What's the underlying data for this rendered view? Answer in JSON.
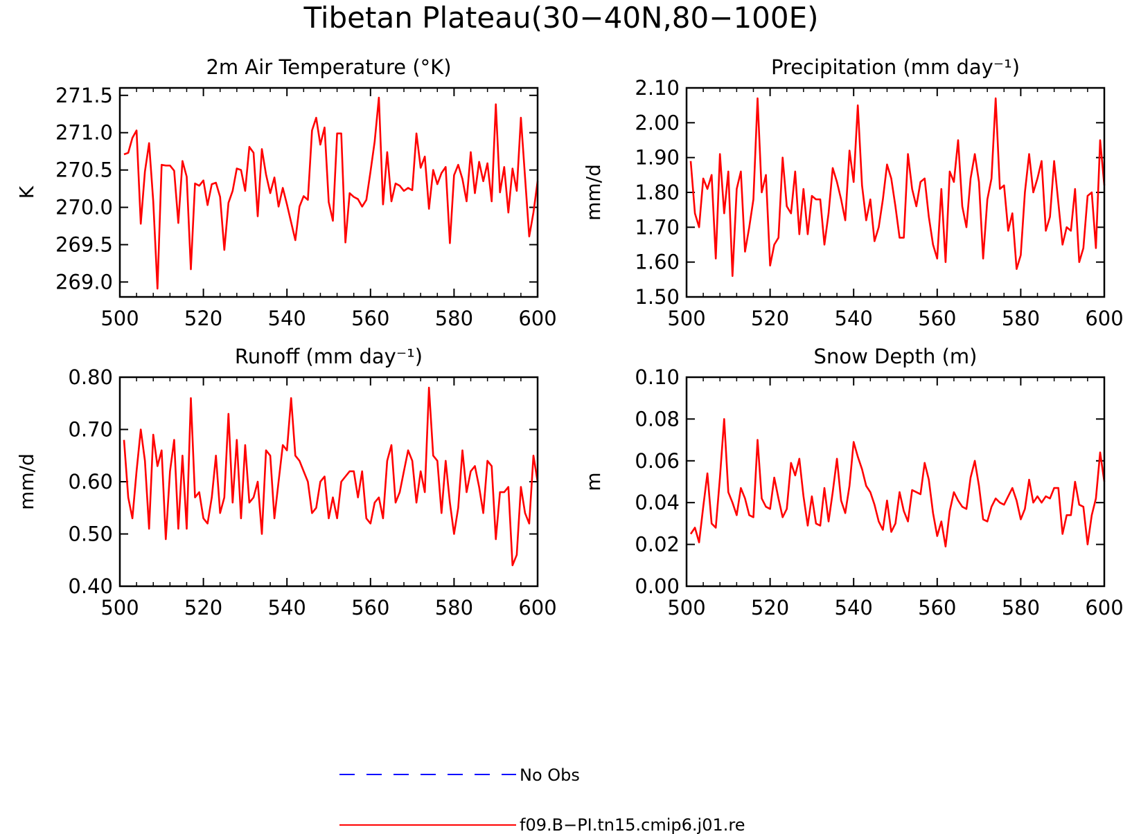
{
  "title": "Tibetan Plateau(30−40N,80−100E)",
  "colors": {
    "model": "#ff0000",
    "obs": "#0000ff",
    "axis": "#000000"
  },
  "legend": [
    {
      "label": "No Obs",
      "color": "#0000ff",
      "style": "dashed"
    },
    {
      "label": "f09.B−PI.tn15.cmip6.j01.re",
      "color": "#ff0000",
      "style": "solid"
    }
  ],
  "chart_data": [
    {
      "type": "line",
      "title": "2m Air Temperature (°K)",
      "xlabel": "",
      "ylabel": "K",
      "xlim": [
        500,
        600
      ],
      "ylim": [
        268.8,
        271.6
      ],
      "xticks": [
        "500",
        "520",
        "540",
        "560",
        "580",
        "600"
      ],
      "yticks": [
        "269.0",
        "269.5",
        "270.0",
        "270.5",
        "271.0",
        "271.5"
      ],
      "x_start": 501,
      "series": [
        {
          "name": "f09.B−PI.tn15.cmip6.j01.re",
          "values": [
            270.71,
            270.73,
            270.93,
            271.03,
            269.78,
            270.48,
            270.86,
            270.08,
            268.91,
            270.57,
            270.56,
            270.56,
            270.49,
            269.79,
            270.62,
            270.41,
            269.17,
            270.32,
            270.29,
            270.36,
            270.03,
            270.31,
            270.33,
            270.14,
            269.43,
            270.06,
            270.22,
            270.52,
            270.5,
            270.22,
            270.81,
            270.73,
            269.88,
            270.78,
            270.44,
            270.19,
            270.4,
            270.01,
            270.26,
            270.04,
            269.8,
            269.56,
            270.01,
            270.15,
            270.1,
            271.03,
            271.2,
            270.84,
            271.07,
            270.07,
            269.82,
            270.99,
            270.99,
            269.53,
            270.19,
            270.14,
            270.11,
            270.01,
            270.1,
            270.48,
            270.88,
            271.47,
            270.04,
            270.74,
            270.08,
            270.32,
            270.29,
            270.22,
            270.26,
            270.23,
            270.99,
            270.53,
            270.68,
            269.98,
            270.5,
            270.31,
            270.46,
            270.54,
            269.52,
            270.43,
            270.57,
            270.38,
            270.08,
            270.74,
            270.19,
            270.61,
            270.35,
            270.59,
            270.08,
            271.38,
            270.2,
            270.54,
            269.93,
            270.52,
            270.22,
            271.2,
            270.4,
            269.61,
            269.93,
            270.35
          ]
        }
      ]
    },
    {
      "type": "line",
      "title": "Precipitation (mm day⁻¹)",
      "xlabel": "",
      "ylabel": "mm/d",
      "xlim": [
        500,
        600
      ],
      "ylim": [
        1.5,
        2.1
      ],
      "xticks": [
        "500",
        "520",
        "540",
        "560",
        "580",
        "600"
      ],
      "yticks": [
        "1.50",
        "1.60",
        "1.70",
        "1.80",
        "1.90",
        "2.00",
        "2.10"
      ],
      "x_start": 501,
      "series": [
        {
          "name": "f09.B−PI.tn15.cmip6.j01.re",
          "values": [
            1.89,
            1.74,
            1.7,
            1.84,
            1.81,
            1.85,
            1.61,
            1.91,
            1.74,
            1.86,
            1.56,
            1.81,
            1.86,
            1.63,
            1.7,
            1.78,
            2.07,
            1.8,
            1.85,
            1.59,
            1.65,
            1.67,
            1.9,
            1.76,
            1.74,
            1.86,
            1.68,
            1.81,
            1.68,
            1.79,
            1.78,
            1.78,
            1.65,
            1.74,
            1.87,
            1.83,
            1.78,
            1.72,
            1.92,
            1.83,
            2.05,
            1.82,
            1.72,
            1.78,
            1.66,
            1.7,
            1.78,
            1.88,
            1.84,
            1.76,
            1.67,
            1.67,
            1.91,
            1.81,
            1.76,
            1.83,
            1.84,
            1.73,
            1.65,
            1.61,
            1.81,
            1.6,
            1.86,
            1.83,
            1.95,
            1.76,
            1.7,
            1.84,
            1.91,
            1.83,
            1.61,
            1.78,
            1.84,
            2.07,
            1.81,
            1.82,
            1.69,
            1.74,
            1.58,
            1.62,
            1.8,
            1.91,
            1.8,
            1.84,
            1.89,
            1.69,
            1.73,
            1.89,
            1.77,
            1.65,
            1.7,
            1.69,
            1.81,
            1.6,
            1.64,
            1.79,
            1.8,
            1.64,
            1.95,
            1.82
          ]
        }
      ]
    },
    {
      "type": "line",
      "title": "Runoff (mm day⁻¹)",
      "xlabel": "",
      "ylabel": "mm/d",
      "xlim": [
        500,
        600
      ],
      "ylim": [
        0.4,
        0.8
      ],
      "xticks": [
        "500",
        "520",
        "540",
        "560",
        "580",
        "600"
      ],
      "yticks": [
        "0.40",
        "0.50",
        "0.60",
        "0.70",
        "0.80"
      ],
      "x_start": 501,
      "series": [
        {
          "name": "f09.B−PI.tn15.cmip6.j01.re",
          "values": [
            0.68,
            0.57,
            0.53,
            0.62,
            0.7,
            0.64,
            0.51,
            0.69,
            0.63,
            0.66,
            0.49,
            0.62,
            0.68,
            0.51,
            0.65,
            0.51,
            0.76,
            0.57,
            0.58,
            0.53,
            0.52,
            0.57,
            0.65,
            0.54,
            0.57,
            0.73,
            0.56,
            0.68,
            0.53,
            0.67,
            0.56,
            0.57,
            0.6,
            0.5,
            0.66,
            0.65,
            0.53,
            0.6,
            0.67,
            0.66,
            0.76,
            0.65,
            0.64,
            0.62,
            0.6,
            0.54,
            0.55,
            0.6,
            0.61,
            0.53,
            0.57,
            0.53,
            0.6,
            0.61,
            0.62,
            0.62,
            0.57,
            0.62,
            0.53,
            0.52,
            0.56,
            0.57,
            0.53,
            0.64,
            0.67,
            0.56,
            0.58,
            0.62,
            0.66,
            0.64,
            0.56,
            0.62,
            0.58,
            0.78,
            0.65,
            0.64,
            0.54,
            0.64,
            0.56,
            0.5,
            0.55,
            0.66,
            0.58,
            0.62,
            0.63,
            0.59,
            0.54,
            0.64,
            0.63,
            0.49,
            0.58,
            0.58,
            0.59,
            0.44,
            0.46,
            0.59,
            0.54,
            0.52,
            0.65,
            0.6
          ]
        }
      ]
    },
    {
      "type": "line",
      "title": "Snow Depth (m)",
      "xlabel": "",
      "ylabel": "m",
      "xlim": [
        500,
        600
      ],
      "ylim": [
        0.0,
        0.1
      ],
      "xticks": [
        "500",
        "520",
        "540",
        "560",
        "580",
        "600"
      ],
      "yticks": [
        "0.00",
        "0.02",
        "0.04",
        "0.06",
        "0.08",
        "0.10"
      ],
      "x_start": 501,
      "series": [
        {
          "name": "f09.B−PI.tn15.cmip6.j01.re",
          "values": [
            0.025,
            0.028,
            0.021,
            0.038,
            0.054,
            0.03,
            0.028,
            0.052,
            0.08,
            0.045,
            0.04,
            0.034,
            0.047,
            0.042,
            0.034,
            0.033,
            0.07,
            0.042,
            0.038,
            0.037,
            0.052,
            0.042,
            0.033,
            0.037,
            0.059,
            0.053,
            0.061,
            0.043,
            0.029,
            0.043,
            0.03,
            0.029,
            0.047,
            0.031,
            0.045,
            0.061,
            0.041,
            0.035,
            0.048,
            0.069,
            0.062,
            0.056,
            0.048,
            0.045,
            0.039,
            0.031,
            0.027,
            0.041,
            0.026,
            0.03,
            0.045,
            0.036,
            0.031,
            0.046,
            0.045,
            0.044,
            0.059,
            0.051,
            0.035,
            0.024,
            0.031,
            0.019,
            0.036,
            0.045,
            0.041,
            0.038,
            0.037,
            0.052,
            0.06,
            0.048,
            0.032,
            0.031,
            0.038,
            0.042,
            0.04,
            0.039,
            0.043,
            0.047,
            0.041,
            0.032,
            0.037,
            0.051,
            0.04,
            0.043,
            0.04,
            0.043,
            0.042,
            0.047,
            0.047,
            0.025,
            0.034,
            0.034,
            0.05,
            0.039,
            0.038,
            0.02,
            0.034,
            0.042,
            0.064,
            0.05
          ]
        }
      ]
    }
  ]
}
